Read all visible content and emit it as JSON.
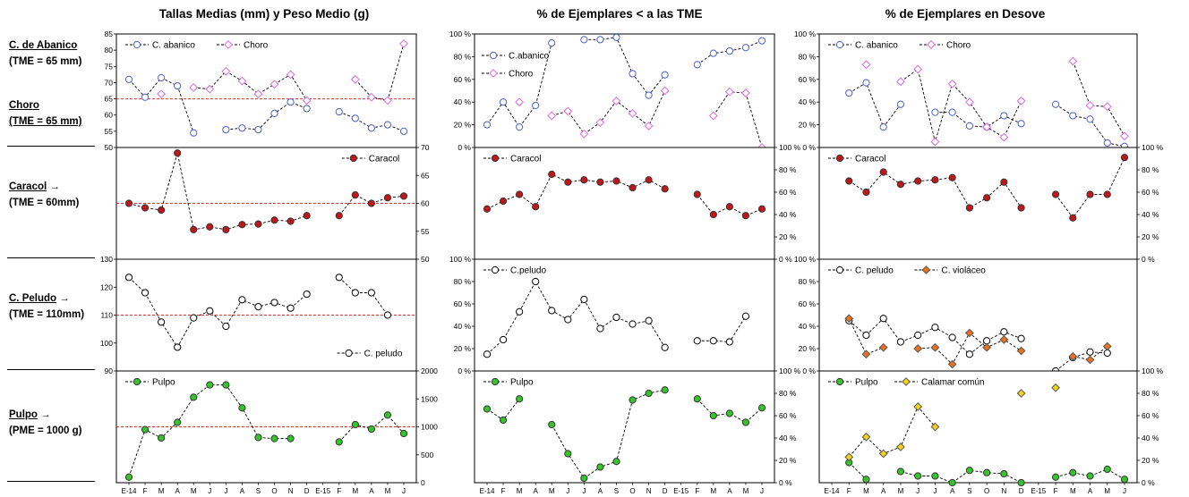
{
  "titles": {
    "col1": "Tallas Medias (mm) y Peso Medio (g)",
    "col2": "% de Ejemplares  < a las TME",
    "col3": "% de Ejemplares en Desove"
  },
  "side_labels": {
    "r1a_name": "C. de Abanico",
    "r1a_tme": "(TME = 65 mm)",
    "r1b_name": "Choro",
    "r1b_tme": "(TME = 65 mm)",
    "r2_name": "Caracol",
    "r2_arrow": "→",
    "r2_tme": "(TME = 60mm)",
    "r3_name": "C. Peludo",
    "r3_arrow": "→",
    "r3_tme": "(TME = 110mm)",
    "r4_name": "Pulpo",
    "r4_arrow": "→",
    "r4_tme": "(PME = 1000 g)"
  },
  "x_labels": [
    "E-14",
    "F",
    "M",
    "A",
    "M",
    "J",
    "J",
    "A",
    "S",
    "O",
    "N",
    "D",
    "E-15",
    "F",
    "M",
    "A",
    "M",
    "J"
  ],
  "colors": {
    "blue": "#4a5fd0",
    "pink": "#e066e8",
    "red": "#c0181a",
    "green": "#35c42a",
    "orange": "#e8731c",
    "yellow": "#f2d21a",
    "refline": "#e53030"
  },
  "chart_data": [
    {
      "id": "c1r1",
      "type": "line",
      "ylim": [
        50,
        85
      ],
      "yticks": [
        "50",
        "55",
        "60",
        "65",
        "70",
        "75",
        "80",
        "85"
      ],
      "refline": 65,
      "legend_position": "top",
      "series": [
        {
          "name": "C. abanico",
          "marker": "circle-open",
          "color": "#4a5fd0",
          "values": [
            71,
            65.5,
            71.5,
            69,
            54.5,
            null,
            55.5,
            56,
            55.5,
            60.5,
            64,
            62,
            null,
            61,
            59,
            56,
            57,
            55
          ]
        },
        {
          "name": "Choro",
          "marker": "diamond-open",
          "color": "#e066e8",
          "values": [
            null,
            null,
            66.5,
            null,
            68.5,
            68,
            73.5,
            70.5,
            66.5,
            69.5,
            72.5,
            64.5,
            null,
            null,
            71,
            65.5,
            64.5,
            82
          ]
        }
      ]
    },
    {
      "id": "c2r1",
      "type": "line",
      "ylim": [
        0,
        100
      ],
      "yticks": [
        "0 %",
        "20 %",
        "40 %",
        "60 %",
        "80 %",
        "100 %"
      ],
      "legend_position": "left",
      "series": [
        {
          "name": "C.abanico",
          "marker": "circle-open",
          "color": "#4a5fd0",
          "values": [
            20,
            40,
            18,
            37,
            92,
            null,
            95,
            95,
            97,
            65,
            46,
            64,
            null,
            73,
            83,
            85,
            88,
            94
          ]
        },
        {
          "name": "Choro",
          "marker": "diamond-open",
          "color": "#e066e8",
          "values": [
            null,
            null,
            40,
            null,
            28,
            32,
            12,
            22,
            41,
            30,
            19,
            50,
            null,
            null,
            28,
            49,
            48,
            0
          ]
        }
      ]
    },
    {
      "id": "c3r1",
      "type": "line",
      "ylim": [
        0,
        100
      ],
      "yticks": [
        "0 %",
        "20 %",
        "40 %",
        "60 %",
        "80 %",
        "100 %"
      ],
      "legend_position": "top",
      "series": [
        {
          "name": "C. abanico",
          "marker": "circle-open",
          "color": "#4a5fd0",
          "values": [
            null,
            48,
            57,
            18,
            38,
            null,
            31,
            31,
            19,
            18,
            28,
            21,
            null,
            38,
            28,
            25,
            4,
            1
          ]
        },
        {
          "name": "Choro",
          "marker": "diamond-open",
          "color": "#e066e8",
          "values": [
            null,
            null,
            73,
            null,
            58,
            69,
            5,
            56,
            40,
            18,
            9,
            41,
            null,
            null,
            76,
            37,
            36,
            10
          ]
        }
      ]
    },
    {
      "id": "c1r2",
      "type": "line",
      "ylim": [
        50,
        70
      ],
      "yticks": [
        "50",
        "55",
        "60",
        "65",
        "70"
      ],
      "yaxis": "right",
      "refline": 60,
      "legend_position": "top-right",
      "series": [
        {
          "name": "Caracol",
          "marker": "circle-filled",
          "color": "#c0181a",
          "values": [
            60,
            59.2,
            58.8,
            69,
            55.3,
            55.8,
            55.3,
            56.2,
            56.3,
            57,
            56.8,
            57.8,
            null,
            57.8,
            61.5,
            60,
            61,
            61.3
          ]
        }
      ]
    },
    {
      "id": "c2r2",
      "type": "line",
      "ylim": [
        0,
        100
      ],
      "yticks": [
        "0 %",
        "20 %",
        "40 %",
        "60 %",
        "80 %",
        "100 %"
      ],
      "yaxis": "right",
      "legend_position": "top-left",
      "series": [
        {
          "name": "Caracol",
          "marker": "circle-filled",
          "color": "#c0181a",
          "values": [
            45,
            52,
            58,
            47,
            76,
            69,
            71,
            69,
            70,
            64,
            71,
            63,
            null,
            58,
            40,
            47,
            39,
            45
          ]
        }
      ]
    },
    {
      "id": "c3r2",
      "type": "line",
      "ylim": [
        0,
        100
      ],
      "yticks": [
        "0 %",
        "20 %",
        "40 %",
        "60 %",
        "80 %",
        "100 %"
      ],
      "yaxis": "right",
      "legend_position": "top-left",
      "series": [
        {
          "name": "Caracol",
          "marker": "circle-filled",
          "color": "#c0181a",
          "values": [
            null,
            70,
            60,
            78,
            67,
            70,
            71,
            73,
            46,
            55,
            69,
            46,
            null,
            58,
            37,
            58,
            58,
            91
          ]
        }
      ]
    },
    {
      "id": "c1r3",
      "type": "line",
      "ylim": [
        90,
        130
      ],
      "yticks": [
        "90",
        "100",
        "110",
        "120",
        "130"
      ],
      "refline": 110,
      "legend_position": "bottom-right",
      "series": [
        {
          "name": "C. peludo",
          "marker": "circle-open",
          "color": "#000000",
          "values": [
            123.5,
            118,
            107.5,
            98.5,
            109,
            111.5,
            106,
            115.5,
            113,
            114.5,
            112.5,
            117.5,
            null,
            123.5,
            118,
            118,
            110,
            null
          ]
        }
      ]
    },
    {
      "id": "c2r3",
      "type": "line",
      "ylim": [
        0,
        100
      ],
      "yticks": [
        "0 %",
        "20 %",
        "40 %",
        "60 %",
        "80 %",
        "100 %"
      ],
      "legend_position": "top-left",
      "series": [
        {
          "name": "C.peludo",
          "marker": "circle-open",
          "color": "#000000",
          "values": [
            15,
            28,
            53,
            80,
            54,
            46,
            64,
            38,
            48,
            42,
            45,
            21,
            null,
            27,
            27,
            26,
            49,
            null
          ]
        }
      ]
    },
    {
      "id": "c3r3",
      "type": "line",
      "ylim": [
        0,
        100
      ],
      "yticks": [
        "0 %",
        "20 %",
        "40 %",
        "60 %",
        "80 %",
        "100 %"
      ],
      "legend_position": "top",
      "series": [
        {
          "name": "C. peludo",
          "marker": "circle-open",
          "color": "#000000",
          "values": [
            null,
            45,
            32,
            47,
            26,
            32,
            39,
            30,
            15,
            27,
            35,
            29,
            null,
            0,
            12,
            17,
            16,
            null
          ]
        },
        {
          "name": "C. violáceo",
          "marker": "diamond-filled",
          "color": "#e8731c",
          "values": [
            null,
            47,
            15,
            21,
            null,
            20,
            21,
            6,
            34,
            21,
            28,
            18,
            null,
            null,
            13,
            10,
            22,
            null
          ]
        }
      ]
    },
    {
      "id": "c1r4",
      "type": "line",
      "ylim": [
        0,
        2000
      ],
      "yticks": [
        "0",
        "500",
        "1000",
        "1500",
        "2000"
      ],
      "yaxis": "right",
      "refline": 1000,
      "legend_position": "top-left",
      "series": [
        {
          "name": "Pulpo",
          "marker": "circle-filled",
          "color": "#35c42a",
          "values": [
            100,
            950,
            800,
            1080,
            1530,
            1750,
            1750,
            1340,
            810,
            790,
            790,
            null,
            null,
            730,
            1040,
            960,
            1210,
            880
          ]
        }
      ]
    },
    {
      "id": "c2r4",
      "type": "line",
      "ylim": [
        0,
        100
      ],
      "yticks": [
        "0 %",
        "20 %",
        "40 %",
        "60 %",
        "80 %",
        "100 %"
      ],
      "yaxis": "right",
      "legend_position": "top-left",
      "series": [
        {
          "name": "Pulpo",
          "marker": "circle-filled",
          "color": "#35c42a",
          "values": [
            66,
            56,
            75,
            null,
            52,
            26,
            4,
            14,
            19,
            74,
            80,
            83,
            null,
            75,
            60,
            62,
            54,
            67
          ]
        }
      ]
    },
    {
      "id": "c3r4",
      "type": "line",
      "ylim": [
        0,
        100
      ],
      "yticks": [
        "0 %",
        "20 %",
        "40 %",
        "60 %",
        "80 %",
        "100 %"
      ],
      "yaxis": "right",
      "legend_position": "top",
      "series": [
        {
          "name": "Pulpo",
          "marker": "circle-filled",
          "color": "#35c42a",
          "values": [
            null,
            18,
            3,
            null,
            10,
            6,
            6,
            0,
            11,
            9,
            8,
            0,
            null,
            5,
            9,
            6,
            12,
            3
          ]
        },
        {
          "name": "Calamar común",
          "marker": "diamond-filled",
          "color": "#f2d21a",
          "values": [
            null,
            23,
            41,
            26,
            32,
            68,
            50,
            null,
            null,
            null,
            null,
            80,
            null,
            85,
            null,
            null,
            null,
            null
          ]
        }
      ]
    }
  ]
}
